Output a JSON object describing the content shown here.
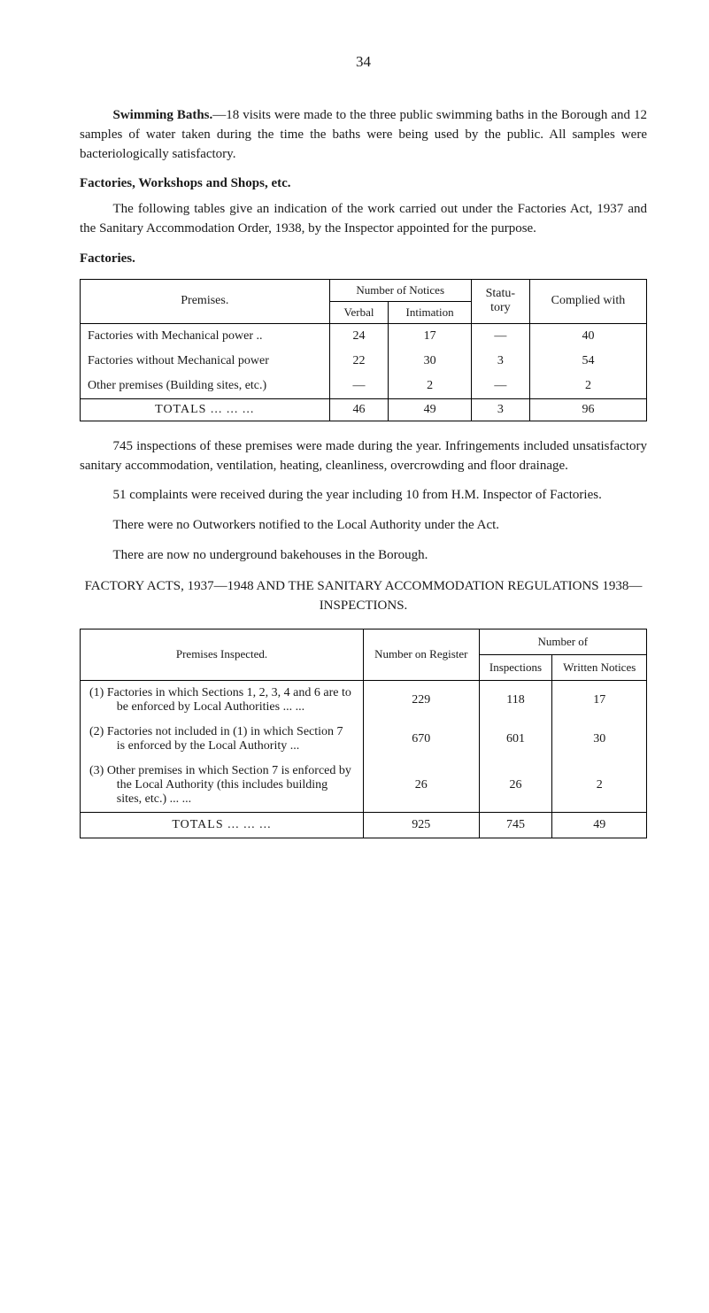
{
  "page_number": "34",
  "para1_lead": "Swimming Baths.",
  "para1": "—18 visits were made to the three public swimming baths in the Borough and 12 samples of water taken during the time the baths were being used by the public. All samples were bacteriologically satisfactory.",
  "subheading1": "Factories, Workshops and Shops, etc.",
  "para2": "The following tables give an indication of the work carried out under the Factories Act, 1937 and the Sanitary Accommodation Order, 1938, by the Inspector appointed for the purpose.",
  "subheading2": "Factories.",
  "table1": {
    "headers": {
      "premises": "Premises.",
      "notices": "Number of Notices",
      "verbal": "Verbal",
      "intimation": "Intimation",
      "statutory": "Statu-\ntory",
      "complied": "Complied with"
    },
    "rows": [
      {
        "premises": "Factories with Mechanical power ..",
        "verbal": "24",
        "intimation": "17",
        "statutory": "—",
        "complied": "40"
      },
      {
        "premises": "Factories without Mechanical power",
        "verbal": "22",
        "intimation": "30",
        "statutory": "3",
        "complied": "54"
      },
      {
        "premises": "Other premises (Building sites, etc.)",
        "verbal": "—",
        "intimation": "2",
        "statutory": "—",
        "complied": "2"
      }
    ],
    "totals": {
      "label": "TOTALS ...   ...   ...",
      "verbal": "46",
      "intimation": "49",
      "statutory": "3",
      "complied": "96"
    }
  },
  "para3": "745 inspections of these premises were made during the year. Infringements included unsatisfactory sanitary accommodation, ventilation, heating, cleanliness, overcrowding and floor drainage.",
  "para4": "51 complaints were received during the year including 10 from H.M. Inspector of Factories.",
  "para5": "There were no Outworkers notified to the Local Authority under the Act.",
  "para6": "There are now no underground bakehouses in the Borough.",
  "section_title": "FACTORY ACTS, 1937—1948 AND THE SANITARY ACCOMMODATION REGULATIONS 1938—INSPECTIONS.",
  "table2": {
    "headers": {
      "premises": "Premises Inspected.",
      "register": "Number on Register",
      "number_of": "Number of",
      "inspections": "Inspections",
      "written": "Written Notices"
    },
    "rows": [
      {
        "premises": "(1) Factories in which Sections 1, 2, 3, 4 and 6 are to be enforced by Local Authorities ...   ...",
        "register": "229",
        "inspections": "118",
        "written": "17"
      },
      {
        "premises": "(2) Factories not included in (1) in which Section 7 is enforced by the Local Authority   ...",
        "register": "670",
        "inspections": "601",
        "written": "30"
      },
      {
        "premises": "(3) Other premises in which Section 7 is enforced by the Local Authority (this includes building sites, etc.)   ...   ...",
        "register": "26",
        "inspections": "26",
        "written": "2"
      }
    ],
    "totals": {
      "label": "TOTALS   ...   ...   ...",
      "register": "925",
      "inspections": "745",
      "written": "49"
    }
  }
}
